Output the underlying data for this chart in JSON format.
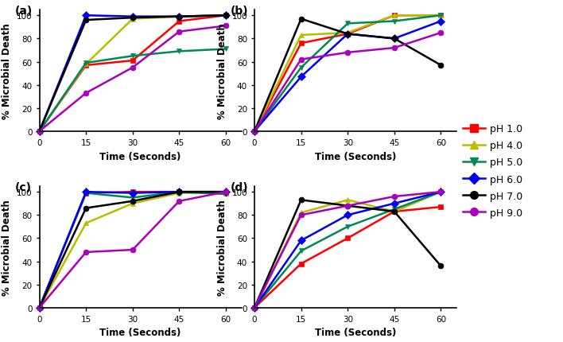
{
  "time": [
    0,
    15,
    30,
    45,
    60
  ],
  "panels": {
    "a": {
      "pH1": [
        0,
        57,
        61,
        95,
        100
      ],
      "pH4": [
        0,
        58,
        97,
        99,
        100
      ],
      "pH5": [
        0,
        59,
        65,
        69,
        71
      ],
      "pH6": [
        0,
        100,
        99,
        99,
        100
      ],
      "pH7": [
        0,
        96,
        98,
        99,
        100
      ],
      "pH9": [
        0,
        33,
        55,
        86,
        91
      ]
    },
    "b": {
      "pH1": [
        0,
        76,
        84,
        100,
        100
      ],
      "pH4": [
        0,
        83,
        85,
        100,
        100
      ],
      "pH5": [
        0,
        55,
        93,
        95,
        100
      ],
      "pH6": [
        0,
        47,
        84,
        80,
        95
      ],
      "pH7": [
        0,
        97,
        84,
        80,
        57
      ],
      "pH9": [
        0,
        62,
        68,
        72,
        85
      ]
    },
    "c": {
      "pH1": [
        0,
        99,
        100,
        100,
        99
      ],
      "pH4": [
        0,
        73,
        90,
        99,
        99
      ],
      "pH5": [
        0,
        99,
        95,
        100,
        98
      ],
      "pH6": [
        0,
        100,
        99,
        100,
        100
      ],
      "pH7": [
        0,
        86,
        92,
        100,
        100
      ],
      "pH9": [
        0,
        48,
        50,
        92,
        100
      ]
    },
    "d": {
      "pH1": [
        0,
        38,
        60,
        83,
        87
      ],
      "pH4": [
        0,
        82,
        93,
        83,
        100
      ],
      "pH5": [
        0,
        49,
        70,
        85,
        100
      ],
      "pH6": [
        0,
        58,
        80,
        90,
        100
      ],
      "pH7": [
        0,
        93,
        88,
        83,
        36
      ],
      "pH9": [
        0,
        80,
        88,
        96,
        100
      ]
    }
  },
  "colors": {
    "pH1": "#FF0000",
    "pH4": "#BBBB00",
    "pH5": "#008855",
    "pH6": "#0000EE",
    "pH7": "#000000",
    "pH9": "#AA00BB"
  },
  "markers": {
    "pH1": "s",
    "pH4": "^",
    "pH5": "v",
    "pH6": "D",
    "pH7": "o",
    "pH9": "o"
  },
  "labels": {
    "pH1": "pH 1.0",
    "pH4": "pH 4.0",
    "pH5": "pH 5.0",
    "pH6": "pH 6.0",
    "pH7": "pH 7.0",
    "pH9": "pH 9.0"
  },
  "panel_labels": [
    "(a)",
    "(b)",
    "(c)",
    "(d)"
  ],
  "xlabel": "Time (Seconds)",
  "ylabel": "% Microbial Death"
}
